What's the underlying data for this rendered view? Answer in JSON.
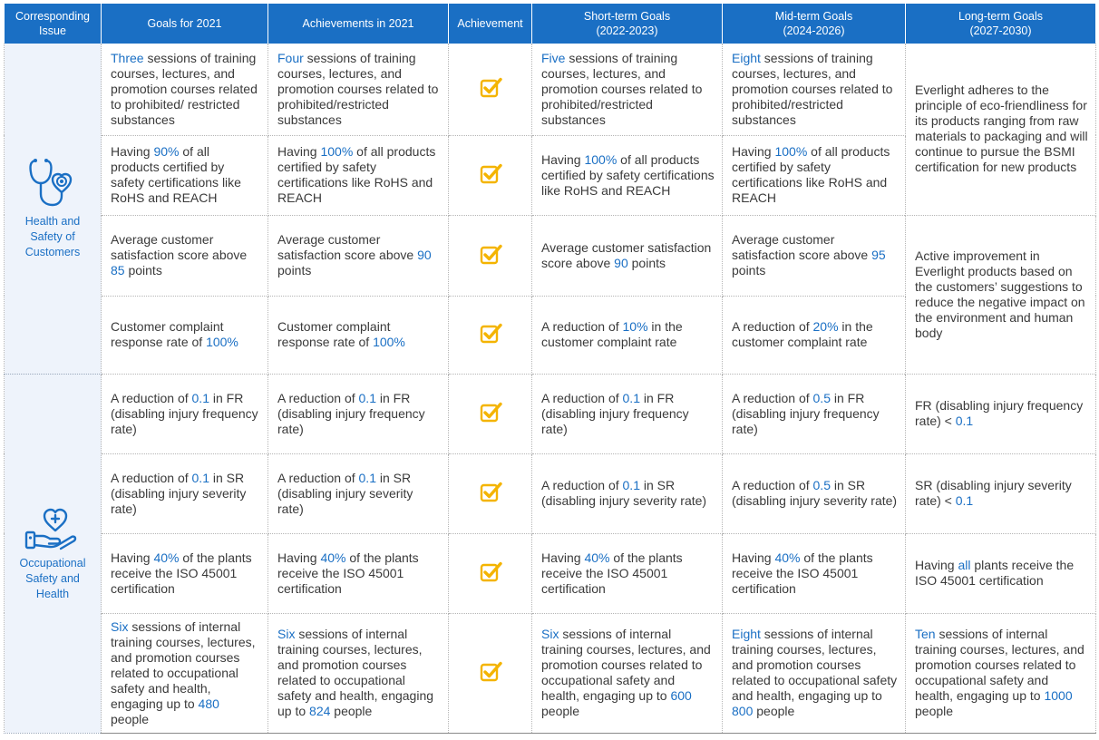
{
  "headers": {
    "issue": "Corresponding Issue",
    "goals2021": "Goals for 2021",
    "ach2021": "Achievements in 2021",
    "achievement": "Achievement",
    "short_title": "Short-term Goals",
    "short_range": "(2022-2023)",
    "mid_title": "Mid-term Goals",
    "mid_range": "(2024-2026)",
    "long_title": "Long-term Goals",
    "long_range": "(2027-2030)"
  },
  "colors": {
    "header_bg": "#1a6fc4",
    "highlight": "#1a6fc4",
    "check": "#f4b400",
    "issue_bg": "#eef3fb"
  },
  "sections": [
    {
      "issue": "Health and Safety of Customers",
      "icon": "stethoscope-heart-icon",
      "long_term": [
        [
          {
            "t": "Everlight adheres to the principle of eco-friendliness for its products ranging from raw materials to packaging and will continue to pursue the BSMI certification for new products",
            "h": false
          }
        ],
        [
          {
            "t": "Active improvement in Everlight products based on the customers’  suggestions to reduce the negative impact on the environment and human body",
            "h": false
          }
        ]
      ],
      "rows": [
        {
          "g2021": [
            {
              "t": "Three",
              "h": true
            },
            {
              "t": " sessions of training courses, lectures, and promotion courses related to prohibited/ restricted substances",
              "h": false
            }
          ],
          "a2021": [
            {
              "t": "Four",
              "h": true
            },
            {
              "t": " sessions of training courses, lectures, and promotion courses related to prohibited/restricted substances",
              "h": false
            }
          ],
          "achieved": "checked-box-icon",
          "short": [
            {
              "t": "Five",
              "h": true
            },
            {
              "t": " sessions of training courses, lectures, and promotion courses related to prohibited/restricted substances",
              "h": false
            }
          ],
          "mid": [
            {
              "t": "Eight",
              "h": true
            },
            {
              "t": " sessions of training courses, lectures, and promotion courses related to prohibited/restricted substances",
              "h": false
            }
          ]
        },
        {
          "g2021": [
            {
              "t": "Having ",
              "h": false
            },
            {
              "t": "90%",
              "h": true
            },
            {
              "t": " of all products certified by safety certifications like RoHS and REACH",
              "h": false
            }
          ],
          "a2021": [
            {
              "t": "Having ",
              "h": false
            },
            {
              "t": "100%",
              "h": true
            },
            {
              "t": " of all products certified by safety certifications like RoHS and REACH",
              "h": false
            }
          ],
          "achieved": "checked-box-icon",
          "short": [
            {
              "t": "Having ",
              "h": false
            },
            {
              "t": "100%",
              "h": true
            },
            {
              "t": " of all products certified by safety certifications like RoHS and REACH",
              "h": false
            }
          ],
          "mid": [
            {
              "t": "Having ",
              "h": false
            },
            {
              "t": "100%",
              "h": true
            },
            {
              "t": " of all products certified by safety certifications like RoHS and REACH",
              "h": false
            }
          ]
        },
        {
          "g2021": [
            {
              "t": "Average customer satisfaction score above ",
              "h": false
            },
            {
              "t": "85",
              "h": true
            },
            {
              "t": " points",
              "h": false
            }
          ],
          "a2021": [
            {
              "t": "Average customer satisfaction score above ",
              "h": false
            },
            {
              "t": "90",
              "h": true
            },
            {
              "t": " points",
              "h": false
            }
          ],
          "achieved": "checked-box-icon",
          "short": [
            {
              "t": "Average customer satisfaction score above ",
              "h": false
            },
            {
              "t": "90",
              "h": true
            },
            {
              "t": " points",
              "h": false
            }
          ],
          "mid": [
            {
              "t": "Average customer satisfaction score above ",
              "h": false
            },
            {
              "t": "95",
              "h": true
            },
            {
              "t": " points",
              "h": false
            }
          ]
        },
        {
          "g2021": [
            {
              "t": "Customer complaint response rate of  ",
              "h": false
            },
            {
              "t": "100%",
              "h": true
            }
          ],
          "a2021": [
            {
              "t": "Customer complaint response rate of ",
              "h": false
            },
            {
              "t": "100%",
              "h": true
            }
          ],
          "achieved": "checked-box-icon",
          "short": [
            {
              "t": "A reduction of ",
              "h": false
            },
            {
              "t": "10%",
              "h": true
            },
            {
              "t": " in the customer complaint rate",
              "h": false
            }
          ],
          "mid": [
            {
              "t": "A reduction of ",
              "h": false
            },
            {
              "t": "20%",
              "h": true
            },
            {
              "t": " in the customer complaint rate",
              "h": false
            }
          ]
        }
      ]
    },
    {
      "issue": "Occupational Safety and Health",
      "icon": "hand-heart-icon",
      "rows": [
        {
          "g2021": [
            {
              "t": "A reduction of ",
              "h": false
            },
            {
              "t": "0.1",
              "h": true
            },
            {
              "t": " in FR (disabling injury frequency rate)",
              "h": false
            }
          ],
          "a2021": [
            {
              "t": "A reduction of ",
              "h": false
            },
            {
              "t": "0.1",
              "h": true
            },
            {
              "t": " in FR (disabling injury frequency rate)",
              "h": false
            }
          ],
          "achieved": "checked-box-icon",
          "short": [
            {
              "t": "A reduction of ",
              "h": false
            },
            {
              "t": "0.1",
              "h": true
            },
            {
              "t": " in FR (disabling injury frequency rate)",
              "h": false
            }
          ],
          "mid": [
            {
              "t": "A reduction of ",
              "h": false
            },
            {
              "t": "0.5",
              "h": true
            },
            {
              "t": " in FR (disabling injury frequency rate)",
              "h": false
            }
          ],
          "long": [
            {
              "t": "FR (disabling injury frequency rate) < ",
              "h": false
            },
            {
              "t": "0.1",
              "h": true
            }
          ]
        },
        {
          "g2021": [
            {
              "t": "A reduction of ",
              "h": false
            },
            {
              "t": "0.1",
              "h": true
            },
            {
              "t": " in SR (disabling injury severity rate)",
              "h": false
            }
          ],
          "a2021": [
            {
              "t": "A reduction of ",
              "h": false
            },
            {
              "t": "0.1",
              "h": true
            },
            {
              "t": " in SR (disabling injury severity rate)",
              "h": false
            }
          ],
          "achieved": "checked-box-icon",
          "short": [
            {
              "t": "A reduction of ",
              "h": false
            },
            {
              "t": "0.1",
              "h": true
            },
            {
              "t": " in SR (disabling injury severity rate)",
              "h": false
            }
          ],
          "mid": [
            {
              "t": "A reduction of ",
              "h": false
            },
            {
              "t": "0.5",
              "h": true
            },
            {
              "t": " in SR (disabling injury severity rate)",
              "h": false
            }
          ],
          "long": [
            {
              "t": "SR (disabling injury severity rate) < ",
              "h": false
            },
            {
              "t": "0.1",
              "h": true
            }
          ]
        },
        {
          "g2021": [
            {
              "t": "Having ",
              "h": false
            },
            {
              "t": "40%",
              "h": true
            },
            {
              "t": " of the plants receive the ISO 45001 certification",
              "h": false
            }
          ],
          "a2021": [
            {
              "t": "Having ",
              "h": false
            },
            {
              "t": "40%",
              "h": true
            },
            {
              "t": " of the plants receive the ISO 45001 certification",
              "h": false
            }
          ],
          "achieved": "checked-box-icon",
          "short": [
            {
              "t": "Having ",
              "h": false
            },
            {
              "t": "40%",
              "h": true
            },
            {
              "t": " of the plants receive the ISO 45001 certification",
              "h": false
            }
          ],
          "mid": [
            {
              "t": "Having ",
              "h": false
            },
            {
              "t": "40%",
              "h": true
            },
            {
              "t": " of the plants receive the ISO 45001 certification",
              "h": false
            }
          ],
          "long": [
            {
              "t": "Having ",
              "h": false
            },
            {
              "t": "all",
              "h": true
            },
            {
              "t": " plants receive the ISO 45001 certification",
              "h": false
            }
          ]
        },
        {
          "g2021": [
            {
              "t": "Six",
              "h": true
            },
            {
              "t": " sessions of internal training courses, lectures, and promotion courses related to occupational safety and health, engaging up to ",
              "h": false
            },
            {
              "t": "480",
              "h": true
            },
            {
              "t": " people",
              "h": false
            }
          ],
          "a2021": [
            {
              "t": "Six",
              "h": true
            },
            {
              "t": " sessions of internal training courses, lectures, and promotion courses related to occupational safety and health, engaging up to ",
              "h": false
            },
            {
              "t": "824",
              "h": true
            },
            {
              "t": " people",
              "h": false
            }
          ],
          "achieved": "checked-box-icon",
          "short": [
            {
              "t": "Six",
              "h": true
            },
            {
              "t": " sessions of internal training courses, lectures, and promotion courses related to occupational safety and health, engaging up to ",
              "h": false
            },
            {
              "t": "600",
              "h": true
            },
            {
              "t": " people",
              "h": false
            }
          ],
          "mid": [
            {
              "t": "Eight",
              "h": true
            },
            {
              "t": " sessions of internal training courses, lectures, and promotion courses related to occupational safety and health, engaging up to ",
              "h": false
            },
            {
              "t": "800",
              "h": true
            },
            {
              "t": " people",
              "h": false
            }
          ],
          "long": [
            {
              "t": "Ten",
              "h": true
            },
            {
              "t": " sessions of internal training courses, lectures, and promotion courses related to occupational safety and health, engaging up to ",
              "h": false
            },
            {
              "t": "1000",
              "h": true
            },
            {
              "t": " people",
              "h": false
            }
          ]
        }
      ]
    }
  ]
}
